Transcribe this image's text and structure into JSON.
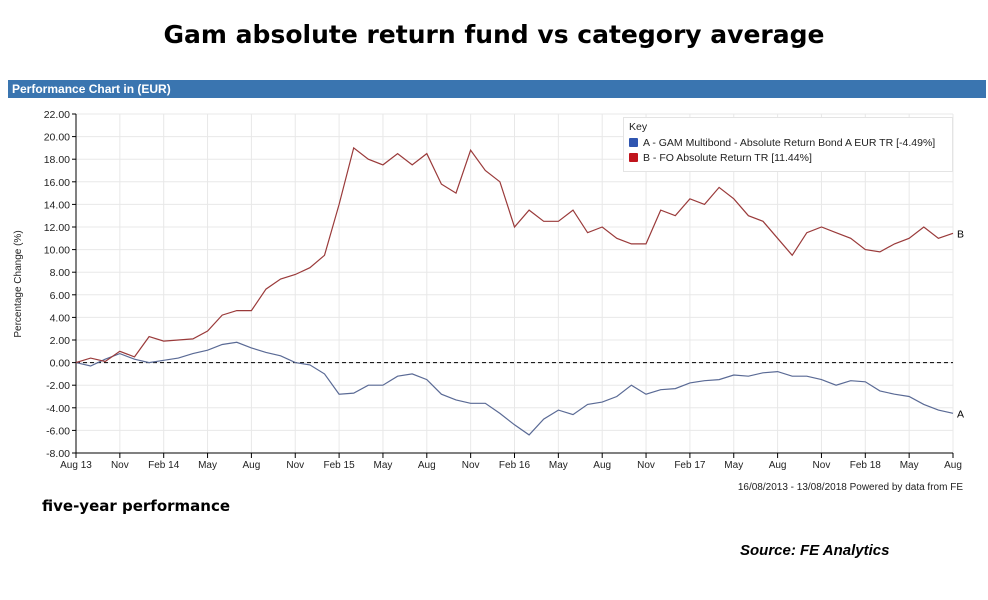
{
  "header": {
    "title": "Gam absolute return fund vs category average",
    "bar_title": "Performance Chart in (EUR)"
  },
  "footer": {
    "range_note": "16/08/2013 - 13/08/2018 Powered by data from FE",
    "caption": "five-year performance",
    "source": "Source: FE Analytics"
  },
  "chart_data": {
    "type": "line",
    "ylabel": "Percentage Change (%)",
    "ylim": [
      -8,
      22
    ],
    "yticks": [
      "-8.00",
      "-6.00",
      "-4.00",
      "-2.00",
      "0.00",
      "2.00",
      "4.00",
      "6.00",
      "8.00",
      "10.00",
      "12.00",
      "14.00",
      "16.00",
      "18.00",
      "20.00",
      "22.00"
    ],
    "xticks": [
      "Aug 13",
      "Nov",
      "Feb 14",
      "May",
      "Aug",
      "Nov",
      "Feb 15",
      "May",
      "Aug",
      "Nov",
      "Feb 16",
      "May",
      "Aug",
      "Nov",
      "Feb 17",
      "May",
      "Aug",
      "Nov",
      "Feb 18",
      "May",
      "Aug"
    ],
    "grid": true,
    "legend": {
      "title": "Key",
      "placement": "top-right"
    },
    "x": [
      "2013-08",
      "2013-09",
      "2013-10",
      "2013-11",
      "2013-12",
      "2014-01",
      "2014-02",
      "2014-03",
      "2014-04",
      "2014-05",
      "2014-06",
      "2014-07",
      "2014-08",
      "2014-09",
      "2014-10",
      "2014-11",
      "2014-12",
      "2015-01",
      "2015-02",
      "2015-03",
      "2015-04",
      "2015-05",
      "2015-06",
      "2015-07",
      "2015-08",
      "2015-09",
      "2015-10",
      "2015-11",
      "2015-12",
      "2016-01",
      "2016-02",
      "2016-03",
      "2016-04",
      "2016-05",
      "2016-06",
      "2016-07",
      "2016-08",
      "2016-09",
      "2016-10",
      "2016-11",
      "2016-12",
      "2017-01",
      "2017-02",
      "2017-03",
      "2017-04",
      "2017-05",
      "2017-06",
      "2017-07",
      "2017-08",
      "2017-09",
      "2017-10",
      "2017-11",
      "2017-12",
      "2018-01",
      "2018-02",
      "2018-03",
      "2018-04",
      "2018-05",
      "2018-06",
      "2018-07",
      "2018-08"
    ],
    "series": [
      {
        "name": "A - GAM Multibond - Absolute Return Bond A EUR TR [-4.49%]",
        "end_label": "A",
        "color": "#2f55b0",
        "line_color": "#5a6a95",
        "values": [
          0,
          -0.3,
          0.3,
          0.8,
          0.3,
          0,
          0.2,
          0.4,
          0.8,
          1.1,
          1.6,
          1.8,
          1.3,
          0.9,
          0.6,
          0,
          -0.2,
          -1.0,
          -2.8,
          -2.7,
          -2.0,
          -2.0,
          -1.2,
          -1.0,
          -1.5,
          -2.8,
          -3.3,
          -3.6,
          -3.6,
          -4.5,
          -5.5,
          -6.4,
          -5.0,
          -4.2,
          -4.6,
          -3.7,
          -3.5,
          -3.0,
          -2.0,
          -2.8,
          -2.4,
          -2.3,
          -1.8,
          -1.6,
          -1.5,
          -1.1,
          -1.2,
          -0.9,
          -0.8,
          -1.2,
          -1.2,
          -1.5,
          -2.0,
          -1.6,
          -1.7,
          -2.5,
          -2.8,
          -3.0,
          -3.7,
          -4.2,
          -4.49
        ]
      },
      {
        "name": "B - FO Absolute Return TR [11.44%]",
        "end_label": "B",
        "color": "#c0141c",
        "line_color": "#9a3a3a",
        "values": [
          0,
          0.4,
          0.1,
          1.0,
          0.5,
          2.3,
          1.9,
          2.0,
          2.1,
          2.8,
          4.2,
          4.6,
          4.6,
          6.5,
          7.4,
          7.8,
          8.4,
          9.5,
          14.0,
          19.0,
          18.0,
          17.5,
          18.5,
          17.5,
          18.5,
          15.8,
          15.0,
          18.8,
          17.0,
          16.0,
          12.0,
          13.5,
          12.5,
          12.5,
          13.5,
          11.5,
          12.0,
          11.0,
          10.5,
          10.5,
          13.5,
          13.0,
          14.5,
          14.0,
          15.5,
          14.5,
          13.0,
          12.5,
          11.0,
          9.5,
          11.5,
          12.0,
          11.5,
          11.0,
          10.0,
          9.8,
          10.5,
          11.0,
          12.0,
          11.0,
          11.44
        ]
      }
    ]
  }
}
